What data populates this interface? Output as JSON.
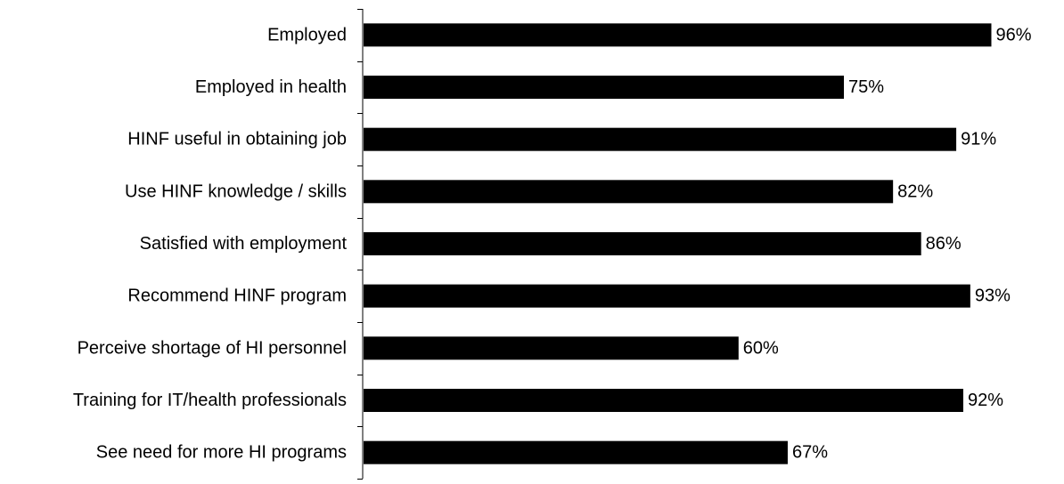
{
  "chart_data": {
    "type": "bar",
    "orientation": "horizontal",
    "categories": [
      "Employed",
      "Employed in health",
      "HINF useful in obtaining job",
      "Use HINF knowledge / skills",
      "Satisfied with employment",
      "Recommend HINF program",
      "Perceive shortage of HI personnel",
      "Training for IT/health professionals",
      "See need for more HI programs"
    ],
    "values": [
      96,
      75,
      91,
      82,
      86,
      93,
      60,
      92,
      67
    ],
    "data_labels": [
      "96%",
      "75%",
      "91%",
      "82%",
      "86%",
      "93%",
      "60%",
      "92%",
      "67%"
    ],
    "value_unit": "%",
    "xlim": [
      0,
      100
    ],
    "title": "",
    "xlabel": "",
    "ylabel": "",
    "grid": false,
    "legend": "none",
    "bar_color": "#000000",
    "axis_color": "#000000",
    "text_color": "#000000"
  }
}
